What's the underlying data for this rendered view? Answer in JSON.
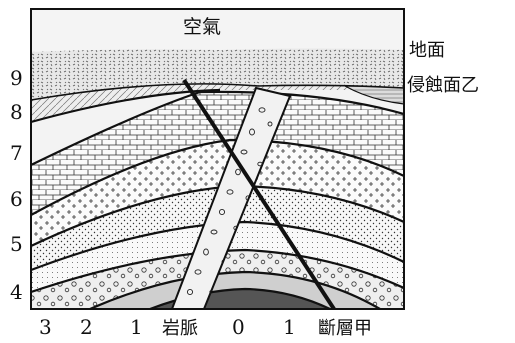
{
  "labels": {
    "air": "空氣",
    "ground_surface": "地面",
    "erosion_surface": "侵蝕面乙",
    "dike": "岩脈",
    "fault": "斷層甲"
  },
  "left_layer_numbers": [
    "9",
    "8",
    "7",
    "6",
    "5",
    "4"
  ],
  "bottom_layer_numbers": [
    "3",
    "2",
    "1",
    "0",
    "1"
  ],
  "colors": {
    "ink": "#111111",
    "air_sky": "#f2f2f2",
    "soil_cap": "#e6e6e6",
    "eroded_block": "#d9d9d9"
  }
}
